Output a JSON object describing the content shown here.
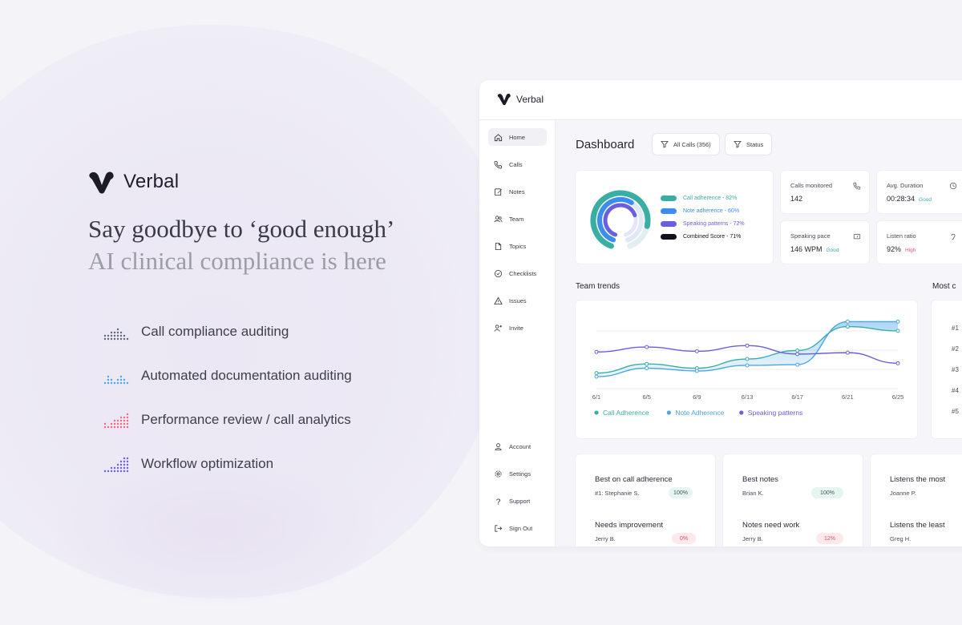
{
  "hero": {
    "brand": "Verbal",
    "headline": "Say goodbye to ‘good enough’",
    "subline": "AI clinical compliance is here",
    "features": [
      {
        "label": "Call compliance auditing",
        "icon": "dot-grid-teal-icon"
      },
      {
        "label": "Automated documentation auditing",
        "icon": "dot-grid-blue-icon"
      },
      {
        "label": "Performance review / call analytics",
        "icon": "dot-grid-red-icon"
      },
      {
        "label": "Workflow optimization",
        "icon": "dot-grid-purple-icon"
      }
    ]
  },
  "app": {
    "brand": "Verbal",
    "nav": [
      "Home",
      "Calls",
      "Notes",
      "Team",
      "Topics",
      "Checklists",
      "Issues",
      "Invite"
    ],
    "nav_bottom": [
      "Account",
      "Settings",
      "Support",
      "Sign Out"
    ],
    "active_nav": "Home",
    "page_title": "Dashboard",
    "filters": {
      "all_calls": "All Calls (356)",
      "status": "Status"
    },
    "score_legend": [
      {
        "label": "Call adherence - 82%",
        "value": 82,
        "color": "#3aaea3"
      },
      {
        "label": "Note adherence - 60%",
        "value": 60,
        "color": "#3b8ef0"
      },
      {
        "label": "Speaking patterns - 72%",
        "value": 72,
        "color": "#6a5fe0"
      },
      {
        "label": "Combined Score - 71%",
        "value": 71,
        "color": "#11121a"
      }
    ],
    "stats": {
      "calls_monitored": {
        "label": "Calls monitored",
        "value": "142"
      },
      "avg_duration": {
        "label": "Avg. Duration",
        "value": "00:28:34",
        "tag": "Good"
      },
      "speaking_pace": {
        "label": "Speaking pace",
        "value": "146 WPM",
        "tag": "Good"
      },
      "listen_ratio": {
        "label": "Listen ratio",
        "value": "92%",
        "tag": "High"
      }
    },
    "team_trends_title": "Team trends",
    "most_title": "Most c",
    "ranks": [
      "#1",
      "#2",
      "#3",
      "#4",
      "#5"
    ],
    "cards": [
      {
        "title": "Best on call adherence",
        "name": "#1: Stephanie S.",
        "badge": "100%",
        "title2": "Needs improvement",
        "name2": "Jerry B.",
        "badge2": "0%"
      },
      {
        "title": "Best notes",
        "name": "Brian K.",
        "badge": "100%",
        "title2": "Notes need work",
        "name2": "Jerry B.",
        "badge2": "12%"
      },
      {
        "title": "Listens the most",
        "name": "Joanne P.",
        "title2": "Listens the least",
        "name2": "Greg H."
      }
    ]
  },
  "chart_data": {
    "type": "line",
    "x": [
      "6/1",
      "6/5",
      "6/9",
      "6/13",
      "6/17",
      "6/21",
      "6/25"
    ],
    "ylim": [
      0,
      100
    ],
    "legend_position": "bottom-left",
    "series": [
      {
        "name": "Call Adherence",
        "color": "#3aaea3",
        "values": [
          22,
          35,
          29,
          42,
          54,
          88,
          82
        ]
      },
      {
        "name": "Note Adherence",
        "color": "#4aa6e8",
        "values": [
          17,
          29,
          25,
          33,
          34,
          95,
          95
        ]
      },
      {
        "name": "Speaking patterns",
        "color": "#6a5fe0",
        "values": [
          52,
          59,
          53,
          61,
          49,
          51,
          36
        ]
      }
    ]
  }
}
